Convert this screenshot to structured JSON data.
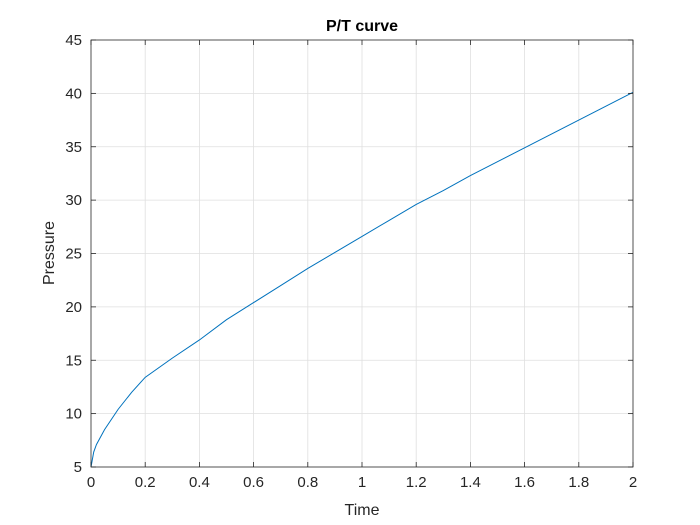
{
  "chart_data": {
    "type": "line",
    "title": "P/T curve",
    "xlabel": "Time",
    "ylabel": "Pressure",
    "xlim": [
      0,
      2
    ],
    "ylim": [
      5,
      45
    ],
    "xticks": [
      0,
      0.2,
      0.4,
      0.6,
      0.8,
      1,
      1.2,
      1.4,
      1.6,
      1.8,
      2
    ],
    "xtick_labels": [
      "0",
      "0.2",
      "0.4",
      "0.6",
      "0.8",
      "1",
      "1.2",
      "1.4",
      "1.6",
      "1.8",
      "2"
    ],
    "yticks": [
      5,
      10,
      15,
      20,
      25,
      30,
      35,
      40,
      45
    ],
    "ytick_labels": [
      "5",
      "10",
      "15",
      "20",
      "25",
      "30",
      "35",
      "40",
      "45"
    ],
    "grid": true,
    "series": [
      {
        "color": "#0072BD",
        "x": [
          0,
          0.01,
          0.02,
          0.05,
          0.1,
          0.15,
          0.2,
          0.3,
          0.4,
          0.5,
          0.6,
          0.7,
          0.8,
          0.9,
          1.0,
          1.1,
          1.2,
          1.3,
          1.4,
          1.5,
          1.6,
          1.7,
          1.8,
          1.9,
          2.0
        ],
        "y": [
          5.0,
          6.4,
          7.1,
          8.5,
          10.4,
          12.0,
          13.4,
          15.2,
          16.9,
          18.8,
          20.4,
          22.0,
          23.6,
          25.1,
          26.6,
          28.1,
          29.6,
          30.9,
          32.3,
          33.6,
          34.9,
          36.2,
          37.5,
          38.8,
          40.1
        ]
      }
    ]
  }
}
